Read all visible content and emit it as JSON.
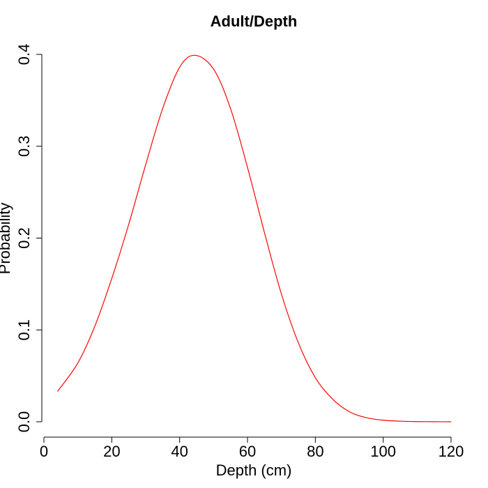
{
  "chart_data": {
    "type": "line",
    "title": "Adult/Depth",
    "xlabel": "Depth (cm)",
    "ylabel": "Probability",
    "xlim": [
      0,
      120
    ],
    "ylim": [
      0,
      0.4
    ],
    "x_ticks": [
      "0",
      "20",
      "40",
      "60",
      "80",
      "100",
      "120"
    ],
    "y_ticks": [
      "0.0",
      "0.1",
      "0.2",
      "0.3",
      "0.4"
    ],
    "grid": false,
    "legend": "none",
    "series": [
      {
        "color": "#ff0000",
        "x": [
          4,
          10,
          15,
          20,
          25,
          30,
          35,
          40,
          44.5,
          50,
          55,
          60,
          65,
          70,
          75,
          80,
          85,
          90,
          95,
          100,
          105,
          110,
          115,
          120
        ],
        "y": [
          0.033,
          0.064,
          0.104,
          0.156,
          0.215,
          0.28,
          0.341,
          0.386,
          0.399,
          0.384,
          0.341,
          0.277,
          0.206,
          0.139,
          0.086,
          0.048,
          0.025,
          0.011,
          0.0045,
          0.0017,
          0.0006,
          0.0002,
          0.0001,
          0.0
        ]
      }
    ]
  }
}
